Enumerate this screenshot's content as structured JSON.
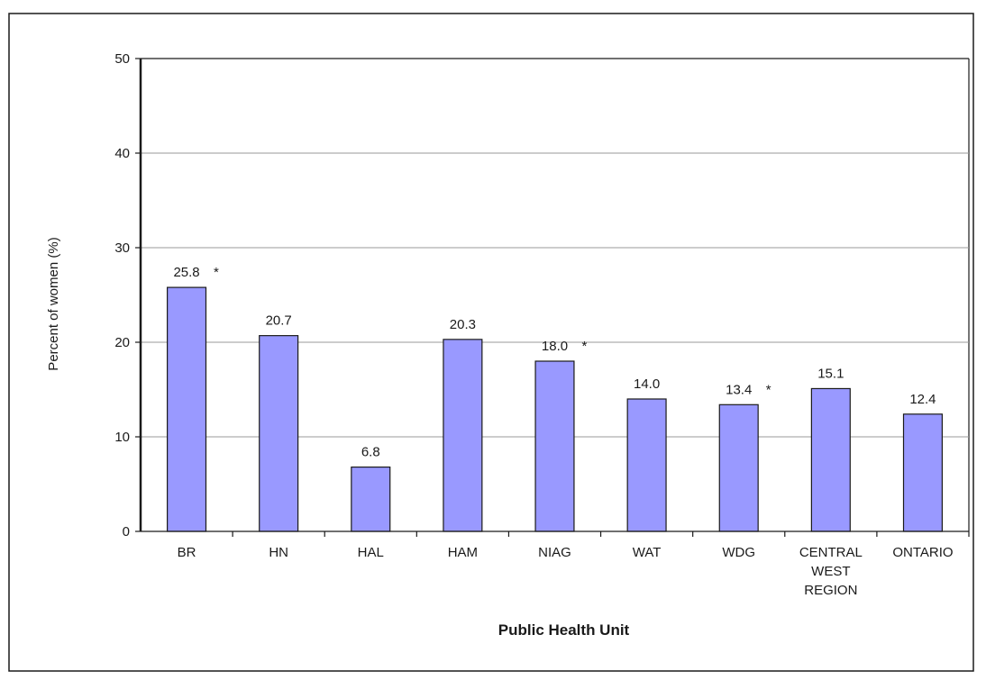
{
  "chart_data": {
    "type": "bar",
    "title": "",
    "xlabel": "Public Health Unit",
    "ylabel": "Percent of women (%)",
    "ylim": [
      0,
      50
    ],
    "yticks": [
      0,
      10,
      20,
      30,
      40,
      50
    ],
    "grid": true,
    "legend": "none",
    "categories": [
      [
        "BR"
      ],
      [
        "HN"
      ],
      [
        "HAL"
      ],
      [
        "HAM"
      ],
      [
        "NIAG"
      ],
      [
        "WAT"
      ],
      [
        "WDG"
      ],
      [
        "CENTRAL",
        "WEST",
        "REGION"
      ],
      [
        "ONTARIO"
      ]
    ],
    "values": [
      25.8,
      20.7,
      6.8,
      20.3,
      18.0,
      14.0,
      13.4,
      15.1,
      12.4
    ],
    "value_labels": [
      "25.8",
      "20.7",
      "6.8",
      "20.3",
      "18.0",
      "14.0",
      "13.4",
      "15.1",
      "12.4"
    ],
    "flags": [
      "*",
      "",
      "",
      "",
      "*",
      "",
      "*",
      "",
      ""
    ],
    "colors": {
      "bar_fill": "#9999ff",
      "bar_stroke": "#1a1a1a",
      "grid": "#999999",
      "axis": "#1a1a1a",
      "frame": "#1a1a1a"
    }
  }
}
